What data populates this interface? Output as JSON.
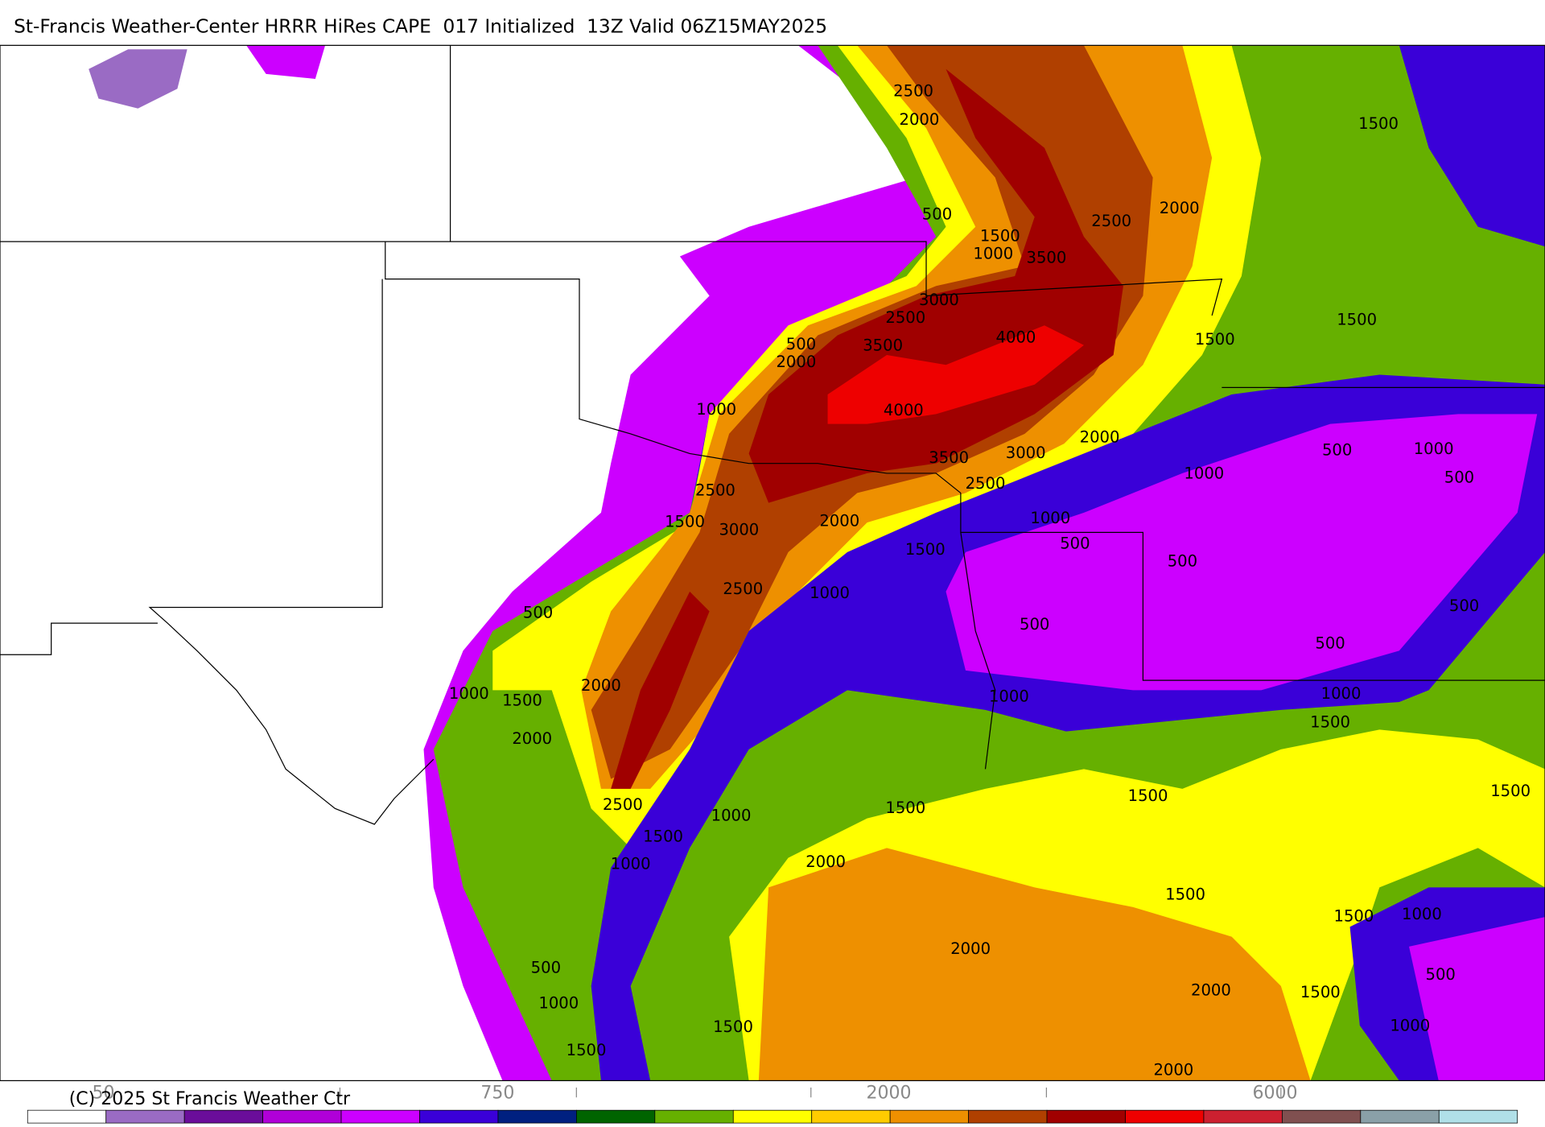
{
  "header": {
    "title": "St-Francis Weather-Center HRRR HiRes CAPE  017 Initialized  13Z Valid 06Z15MAY2025"
  },
  "contour_labels": [
    2500,
    2000,
    500,
    1500,
    1000,
    3500,
    2500,
    2000,
    1500,
    1500,
    1500,
    3000,
    2500,
    500,
    3500,
    4000,
    2000,
    1000,
    4000,
    3500,
    3000,
    2000,
    2500,
    500,
    1000,
    500,
    1000,
    2500,
    1500,
    3000,
    2000,
    1000,
    500,
    1500,
    500,
    2500,
    1000,
    500,
    500,
    500,
    500,
    1000,
    1500,
    2000,
    1000,
    1000,
    2000,
    1500,
    1500,
    1500,
    1500,
    2500,
    1000,
    1500,
    1000,
    2000,
    1500,
    1500,
    1000,
    2000,
    500,
    500,
    2000,
    1500,
    1000,
    1500,
    1000,
    1500,
    2000
  ],
  "colorbar": {
    "colors": [
      "#ffffff",
      "#9a6bc4",
      "#6a0d9a",
      "#b000d8",
      "#cc00ff",
      "#3a00d8",
      "#002080",
      "#006400",
      "#66b000",
      "#ffff00",
      "#ffcc00",
      "#ee9000",
      "#b04000",
      "#a00000",
      "#ee0000",
      "#cc2030",
      "#805050",
      "#8aa0a8",
      "#b0e0e8"
    ],
    "labels": [
      "50",
      "750",
      "2000",
      "6000"
    ]
  },
  "footer": {
    "copyright": "(C) 2025 St Francis Weather Ctr"
  }
}
